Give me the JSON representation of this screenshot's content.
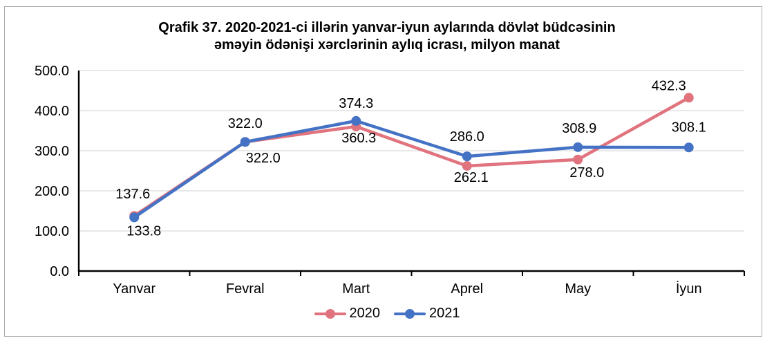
{
  "title": {
    "line1": "Qrafik 37. 2020-2021-ci illərin yanvar-iyun aylarında dövlət büdcəsinin",
    "line2": "əməyin ödənişi xərclərinin aylıq icrası, milyon manat"
  },
  "chart_data": {
    "type": "line",
    "title": "Qrafik 37. 2020-2021-ci illərin yanvar-iyun aylarında dövlət büdcəsinin əməyin ödənişi xərclərinin aylıq icrası, milyon manat",
    "categories": [
      "Yanvar",
      "Fevral",
      "Mart",
      "Aprel",
      "May",
      "İyun"
    ],
    "series": [
      {
        "name": "2020",
        "color": "#e0737e",
        "values": [
          137.6,
          322.0,
          360.3,
          262.1,
          278.0,
          432.3
        ],
        "label_offsets": [
          [
            -2,
            -25
          ],
          [
            0,
            -20
          ],
          [
            4,
            23
          ],
          [
            6,
            23
          ],
          [
            13,
            25
          ],
          [
            -29,
            -11
          ]
        ]
      },
      {
        "name": "2021",
        "color": "#4472c4",
        "values": [
          133.8,
          322.0,
          374.3,
          286.0,
          308.9,
          308.1
        ],
        "label_offsets": [
          [
            14,
            26
          ],
          [
            26,
            30
          ],
          [
            0,
            -19
          ],
          [
            0,
            -22
          ],
          [
            2,
            -21
          ],
          [
            0,
            -23
          ]
        ]
      }
    ],
    "ylim": [
      0,
      500
    ],
    "y_tick_step": 100,
    "y_tick_labels": [
      "0.0",
      "100.0",
      "200.0",
      "300.0",
      "400.0",
      "500.0"
    ],
    "value_decimals": 1,
    "grid": true,
    "legend_position": "bottom-center",
    "xlabel": "",
    "ylabel": ""
  },
  "colors": {
    "axis": "#000000",
    "gridline": "#d9d9d9",
    "frame_border": "#ababab",
    "text": "#000000"
  }
}
